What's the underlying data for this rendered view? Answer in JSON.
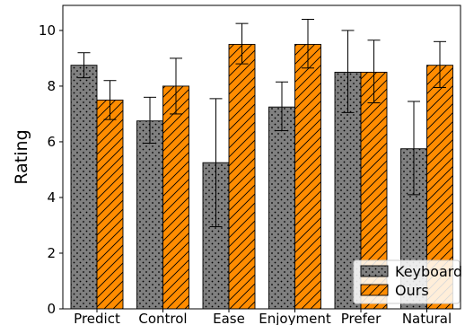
{
  "chart_data": {
    "type": "bar",
    "title": "",
    "xlabel": "",
    "ylabel": "Rating",
    "ylim": [
      0,
      10.9
    ],
    "yticks": [
      0,
      2,
      4,
      6,
      8,
      10
    ],
    "categories": [
      "Predict",
      "Control",
      "Ease",
      "Enjoyment",
      "Prefer",
      "Natural"
    ],
    "series": [
      {
        "name": "Keyboard",
        "color": "#808080",
        "hatch": "dots",
        "values": [
          8.75,
          6.75,
          5.25,
          7.25,
          8.5,
          5.75
        ],
        "error_low": [
          8.3,
          5.95,
          2.95,
          6.4,
          7.05,
          4.1
        ],
        "error_high": [
          9.2,
          7.6,
          7.55,
          8.15,
          10.0,
          7.45
        ]
      },
      {
        "name": "Ours",
        "color": "#ff8c00",
        "hatch": "diagonal",
        "values": [
          7.5,
          8.0,
          9.5,
          9.5,
          8.5,
          8.75
        ],
        "error_low": [
          6.8,
          7.0,
          8.8,
          8.65,
          7.4,
          7.95
        ],
        "error_high": [
          8.2,
          9.0,
          10.25,
          10.4,
          9.65,
          9.6
        ]
      }
    ],
    "grid": false,
    "legend_position": "bottom-right"
  }
}
